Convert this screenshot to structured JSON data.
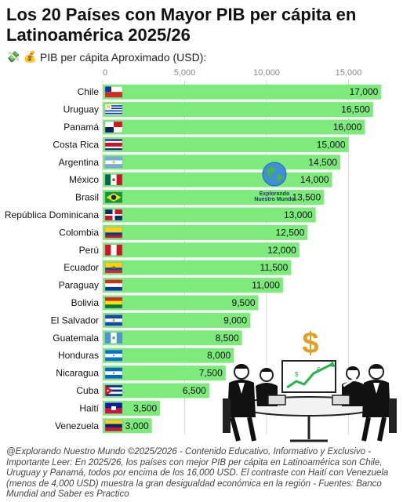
{
  "title": "Los 20 Países con Mayor PIB per cápita en Latinoamérica 2025/26",
  "subtitle": "PIB per cápita Aproximado (USD):",
  "subtitle_icons": [
    "money-with-wings-icon",
    "money-bag-icon"
  ],
  "watermark": "Explorando Nuestro Mundo",
  "footer": "@Explorando Nuestro Mundo ©2025/2026 - Contenido Educativo, Informativo y Exclusivo - Importante Leer: En 2025/26, los países con mejor PIB per cápita en Latinoamérica son Chile, Uruguay y Panamá, todos por encima de los 16,000 USD. El contraste con Haití con Venezuela (menos de 4,000 USD) muestra la gran desigualdad económica en la región - Fuentes: Banco Mundial and Saber es Practico",
  "illustration": {
    "symbol": "$"
  },
  "colors": {
    "bar": "#7CEB7C",
    "grid": "#d9d9d9",
    "tick": "#888888"
  },
  "chart_data": {
    "type": "bar",
    "orientation": "horizontal",
    "xlim": [
      0,
      17500
    ],
    "xticks": [
      0,
      5000,
      10000,
      15000
    ],
    "xtick_labels": [
      "0",
      "5,000",
      "10,000",
      "15,000"
    ],
    "grid": true,
    "categories": [
      "Chile",
      "Uruguay",
      "Panamá",
      "Costa Rica",
      "Argentina",
      "México",
      "Brasil",
      "República Dominicana",
      "Colombia",
      "Perú",
      "Ecuador",
      "Paraguay",
      "Bolivia",
      "El Salvador",
      "Guatemala",
      "Honduras",
      "Nicaragua",
      "Cuba",
      "Haití",
      "Venezuela"
    ],
    "values": [
      17000,
      16500,
      16000,
      15000,
      14500,
      14000,
      13500,
      13000,
      12500,
      12000,
      11500,
      11000,
      9500,
      9000,
      8500,
      8000,
      7500,
      6500,
      3500,
      3000
    ],
    "value_labels": [
      "17,000",
      "16,500",
      "16,000",
      "15,000",
      "14,500",
      "14,000",
      "13,500",
      "13,000",
      "12,500",
      "12,000",
      "11,500",
      "11,000",
      "9,500",
      "9,000",
      "8,500",
      "8,000",
      "7,500",
      "6,500",
      "3,500",
      "3,000"
    ],
    "flags": [
      "chile-flag-icon",
      "uruguay-flag-icon",
      "panama-flag-icon",
      "costa-rica-flag-icon",
      "argentina-flag-icon",
      "mexico-flag-icon",
      "brazil-flag-icon",
      "dominican-republic-flag-icon",
      "colombia-flag-icon",
      "peru-flag-icon",
      "ecuador-flag-icon",
      "paraguay-flag-icon",
      "bolivia-flag-icon",
      "el-salvador-flag-icon",
      "guatemala-flag-icon",
      "honduras-flag-icon",
      "nicaragua-flag-icon",
      "cuba-flag-icon",
      "haiti-flag-icon",
      "venezuela-flag-icon"
    ]
  }
}
